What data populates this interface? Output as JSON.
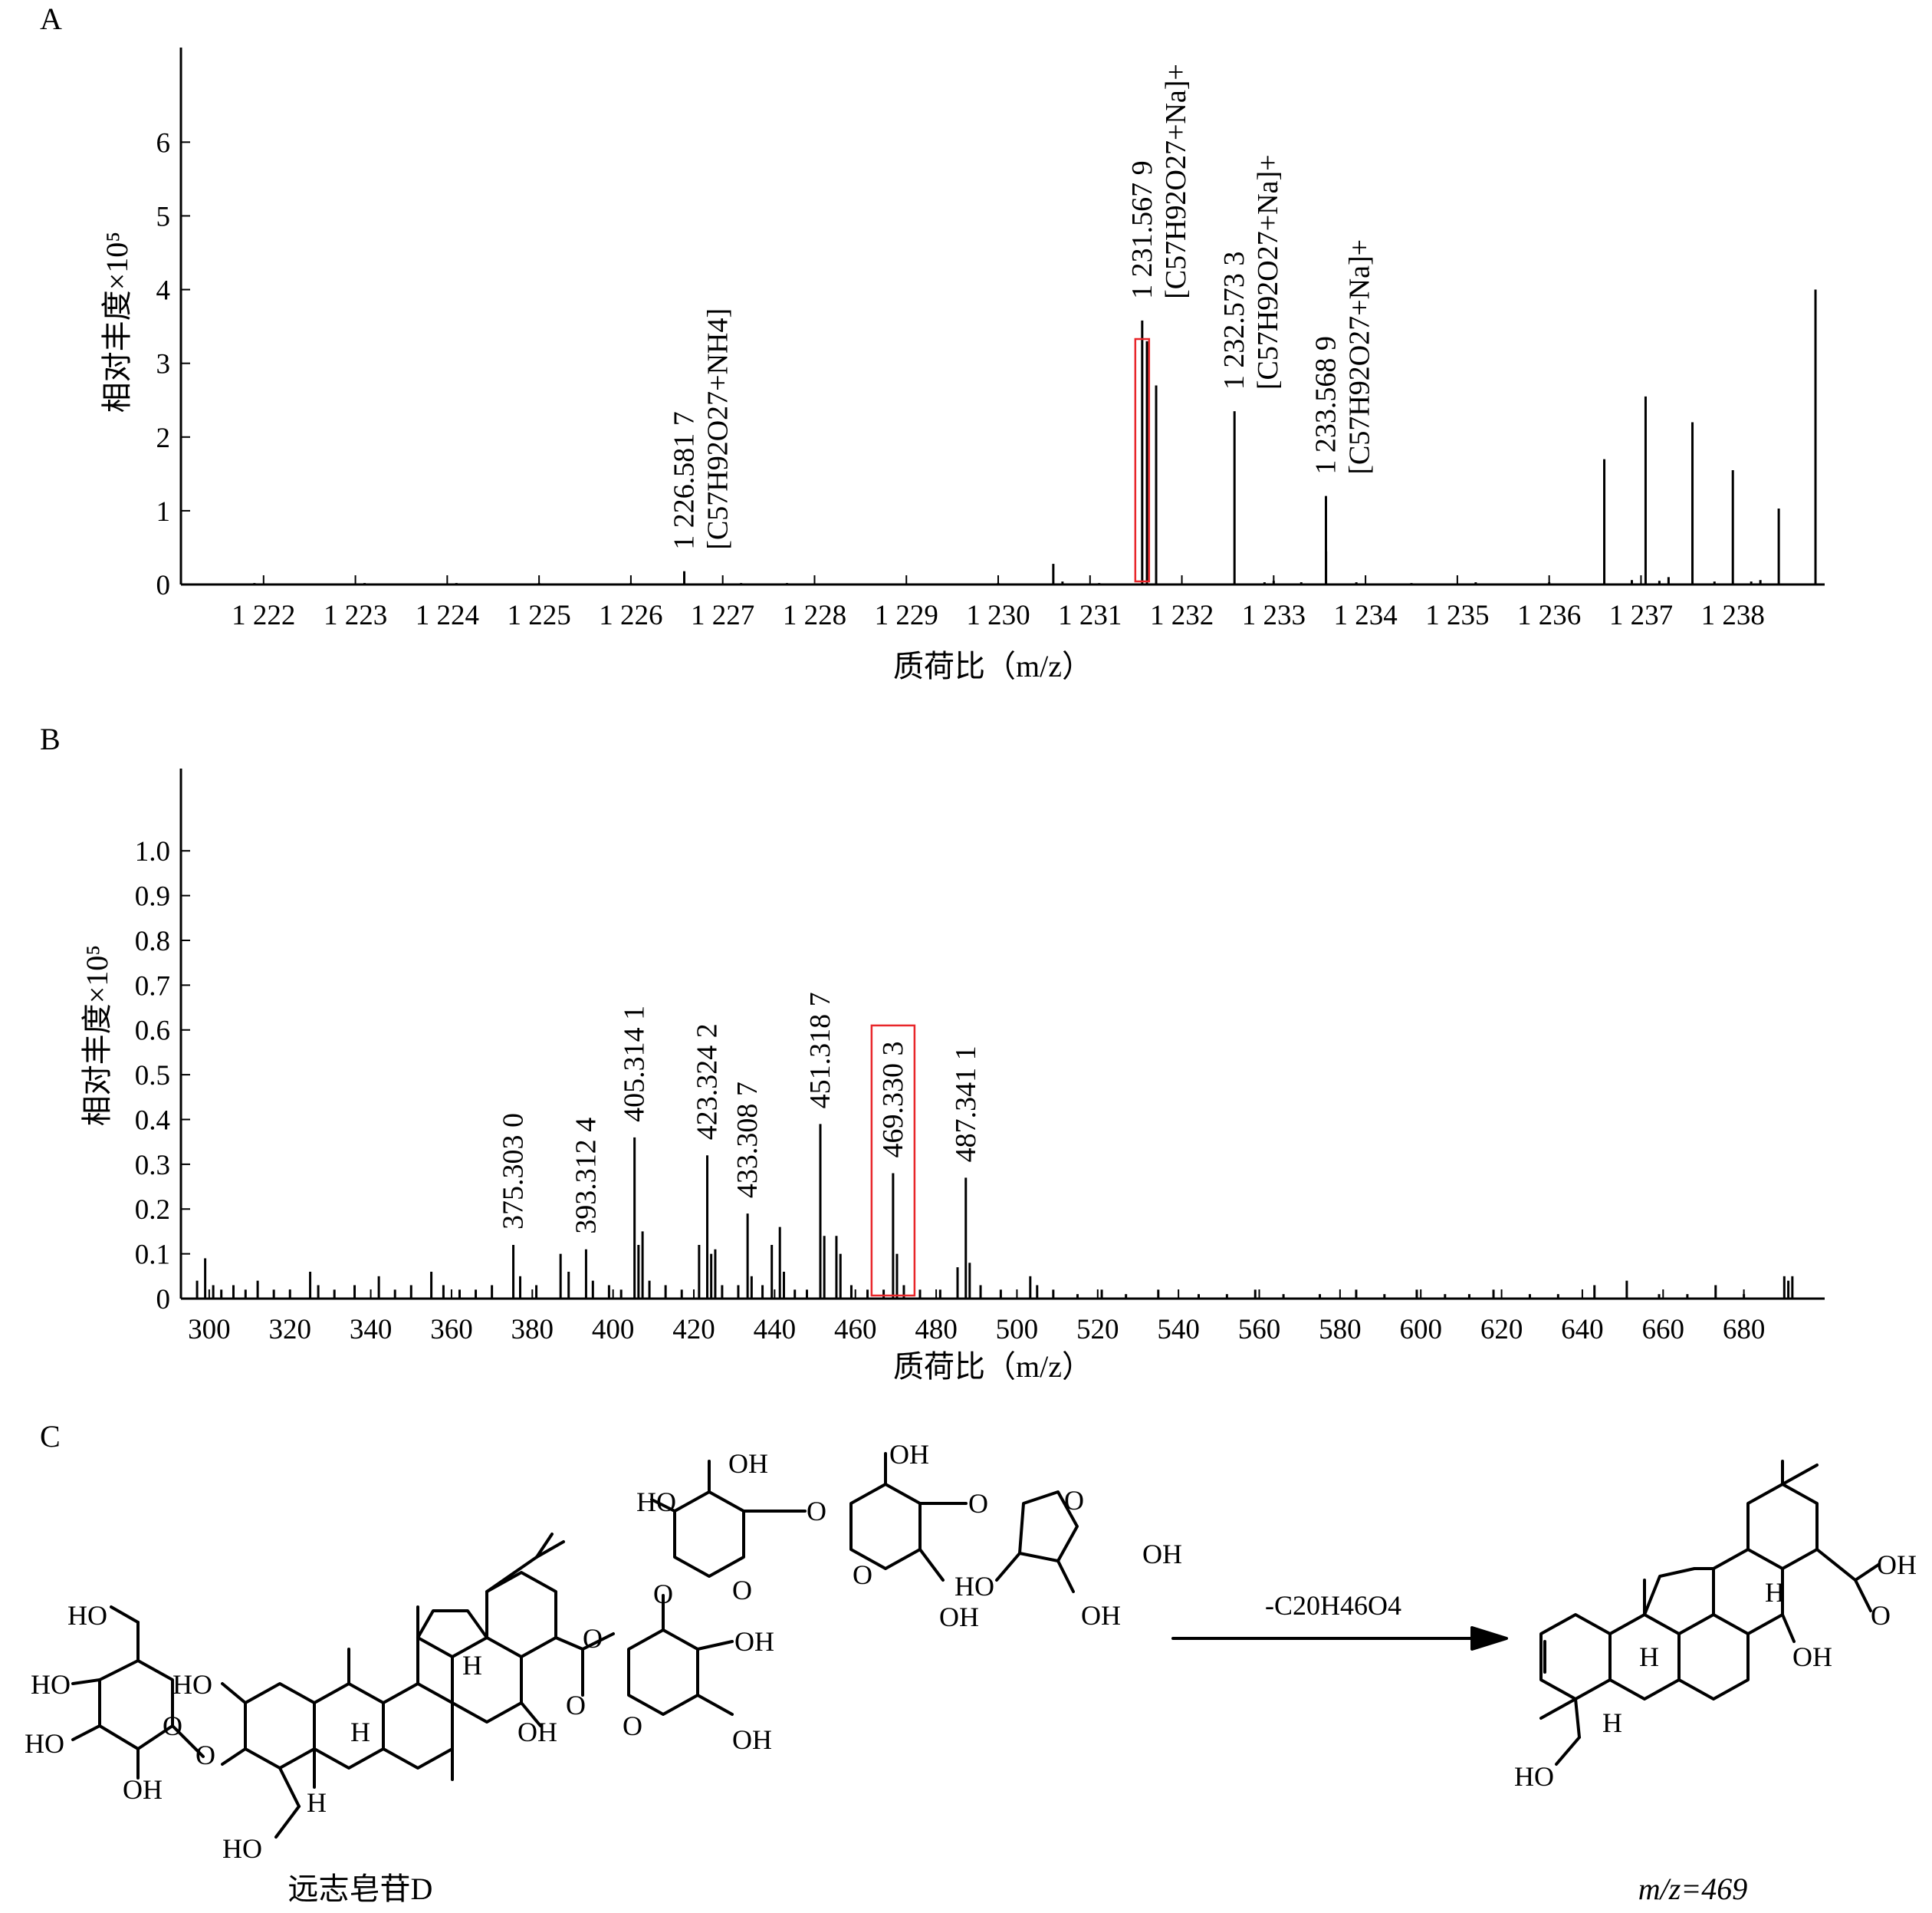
{
  "chart_data": [
    {
      "panel": "A",
      "type": "bar",
      "xlabel": "质荷比（m/z）",
      "ylabel": "相对丰度×10⁵",
      "xlim": [
        1221.1,
        1239.0
      ],
      "ylim": [
        0,
        7.2
      ],
      "x_ticks": [
        1222,
        1223,
        1224,
        1225,
        1226,
        1227,
        1228,
        1229,
        1230,
        1231,
        1232,
        1233,
        1234,
        1235,
        1236,
        1237,
        1238
      ],
      "x_tick_labels": [
        "1 222",
        "1 223",
        "1 224",
        "1 225",
        "1 226",
        "1 227",
        "1 228",
        "1 229",
        "1 230",
        "1 231",
        "1 232",
        "1 233",
        "1 234",
        "1 235",
        "1 236",
        "1 237",
        "1 238"
      ],
      "y_ticks": [
        0,
        1,
        2,
        3,
        4,
        5,
        6
      ],
      "y_tick_labels": [
        "0",
        "1",
        "2",
        "3",
        "4",
        "5",
        "6"
      ],
      "peaks": [
        {
          "x": 1221.9,
          "y": 0.02
        },
        {
          "x": 1222.4,
          "y": 0.01
        },
        {
          "x": 1223.1,
          "y": 0.02
        },
        {
          "x": 1224.1,
          "y": 0.02
        },
        {
          "x": 1225.0,
          "y": 0.02
        },
        {
          "x": 1225.5,
          "y": 0.01
        },
        {
          "x": 1226.0,
          "y": 0.02
        },
        {
          "x": 1226.581,
          "y": 0.18
        },
        {
          "x": 1227.2,
          "y": 0.02
        },
        {
          "x": 1227.7,
          "y": 0.02
        },
        {
          "x": 1228.6,
          "y": 0.01
        },
        {
          "x": 1230.0,
          "y": 0.02
        },
        {
          "x": 1230.6,
          "y": 0.28
        },
        {
          "x": 1230.7,
          "y": 0.04
        },
        {
          "x": 1231.1,
          "y": 0.02
        },
        {
          "x": 1231.568,
          "y": 3.58
        },
        {
          "x": 1231.62,
          "y": 3.3
        },
        {
          "x": 1231.72,
          "y": 2.7
        },
        {
          "x": 1232.573,
          "y": 2.35
        },
        {
          "x": 1232.9,
          "y": 0.03
        },
        {
          "x": 1233.0,
          "y": 0.05
        },
        {
          "x": 1233.3,
          "y": 0.03
        },
        {
          "x": 1233.569,
          "y": 1.2
        },
        {
          "x": 1233.57,
          "y": 0.45
        },
        {
          "x": 1233.9,
          "y": 0.03
        },
        {
          "x": 1234.5,
          "y": 0.02
        },
        {
          "x": 1235.2,
          "y": 0.03
        },
        {
          "x": 1236.0,
          "y": 0.03
        },
        {
          "x": 1236.6,
          "y": 1.7
        },
        {
          "x": 1236.9,
          "y": 0.06
        },
        {
          "x": 1237.05,
          "y": 2.55
        },
        {
          "x": 1237.2,
          "y": 0.05
        },
        {
          "x": 1237.3,
          "y": 0.1
        },
        {
          "x": 1237.56,
          "y": 2.2
        },
        {
          "x": 1237.8,
          "y": 0.04
        },
        {
          "x": 1238.0,
          "y": 1.55
        },
        {
          "x": 1238.2,
          "y": 0.04
        },
        {
          "x": 1238.3,
          "y": 0.06
        },
        {
          "x": 1238.5,
          "y": 1.03
        },
        {
          "x": 1238.9,
          "y": 4.0
        }
      ],
      "annotations": [
        {
          "x": 1226.581,
          "y": 0.18,
          "lines": [
            "1 226.581 7",
            "[C57H92O27+NH4]"
          ]
        },
        {
          "x": 1231.568,
          "y": 3.58,
          "lines": [
            "1 231.567 9",
            "[C57H92O27+Na]+"
          ]
        },
        {
          "x": 1232.573,
          "y": 2.35,
          "lines": [
            "1 232.573 3",
            "[C57H92O27+Na]+"
          ]
        },
        {
          "x": 1233.569,
          "y": 1.2,
          "lines": [
            "1 233.568 9",
            "[C57H92O27+Na]+"
          ]
        }
      ],
      "highlight": {
        "x": 1231.568,
        "label": "red box"
      }
    },
    {
      "panel": "B",
      "type": "bar",
      "xlabel": "质荷比（m/z）",
      "ylabel": "相对丰度×10⁵",
      "xlim": [
        293,
        700
      ],
      "ylim": [
        0,
        1.17
      ],
      "x_ticks": [
        300,
        320,
        340,
        360,
        380,
        400,
        420,
        440,
        460,
        480,
        500,
        520,
        540,
        560,
        580,
        600,
        620,
        640,
        660,
        680
      ],
      "x_tick_labels": [
        "300",
        "320",
        "340",
        "360",
        "380",
        "400",
        "420",
        "440",
        "460",
        "480",
        "500",
        "520",
        "540",
        "560",
        "580",
        "600",
        "620",
        "640",
        "660",
        "680"
      ],
      "y_ticks": [
        0,
        0.1,
        0.2,
        0.3,
        0.4,
        0.5,
        0.6,
        0.7,
        0.8,
        0.9,
        1.0
      ],
      "y_tick_labels": [
        "0",
        "0.1",
        "0.2",
        "0.3",
        "0.4",
        "0.5",
        "0.6",
        "0.7",
        "0.8",
        "0.9",
        "1.0"
      ],
      "peaks": [
        {
          "x": 297,
          "y": 0.04
        },
        {
          "x": 299,
          "y": 0.09
        },
        {
          "x": 301,
          "y": 0.03
        },
        {
          "x": 303,
          "y": 0.02
        },
        {
          "x": 306,
          "y": 0.03
        },
        {
          "x": 309,
          "y": 0.02
        },
        {
          "x": 312,
          "y": 0.04
        },
        {
          "x": 316,
          "y": 0.02
        },
        {
          "x": 320,
          "y": 0.02
        },
        {
          "x": 325,
          "y": 0.06
        },
        {
          "x": 327,
          "y": 0.03
        },
        {
          "x": 331,
          "y": 0.02
        },
        {
          "x": 336,
          "y": 0.03
        },
        {
          "x": 342,
          "y": 0.05
        },
        {
          "x": 346,
          "y": 0.02
        },
        {
          "x": 350,
          "y": 0.03
        },
        {
          "x": 355,
          "y": 0.06
        },
        {
          "x": 358,
          "y": 0.03
        },
        {
          "x": 362,
          "y": 0.02
        },
        {
          "x": 366,
          "y": 0.02
        },
        {
          "x": 370,
          "y": 0.03
        },
        {
          "x": 375.303,
          "y": 0.12
        },
        {
          "x": 377,
          "y": 0.05
        },
        {
          "x": 381,
          "y": 0.03
        },
        {
          "x": 387,
          "y": 0.1
        },
        {
          "x": 389,
          "y": 0.06
        },
        {
          "x": 393.312,
          "y": 0.11
        },
        {
          "x": 395,
          "y": 0.04
        },
        {
          "x": 399,
          "y": 0.03
        },
        {
          "x": 402,
          "y": 0.02
        },
        {
          "x": 405.314,
          "y": 0.36
        },
        {
          "x": 406.3,
          "y": 0.12
        },
        {
          "x": 407.3,
          "y": 0.15
        },
        {
          "x": 409,
          "y": 0.04
        },
        {
          "x": 413,
          "y": 0.03
        },
        {
          "x": 417,
          "y": 0.02
        },
        {
          "x": 421.3,
          "y": 0.12
        },
        {
          "x": 423.324,
          "y": 0.32
        },
        {
          "x": 424.3,
          "y": 0.1
        },
        {
          "x": 425.3,
          "y": 0.11
        },
        {
          "x": 427,
          "y": 0.03
        },
        {
          "x": 431,
          "y": 0.03
        },
        {
          "x": 433.309,
          "y": 0.19
        },
        {
          "x": 434.3,
          "y": 0.05
        },
        {
          "x": 437,
          "y": 0.03
        },
        {
          "x": 439.3,
          "y": 0.12
        },
        {
          "x": 441.3,
          "y": 0.16
        },
        {
          "x": 442.3,
          "y": 0.06
        },
        {
          "x": 445,
          "y": 0.02
        },
        {
          "x": 448,
          "y": 0.02
        },
        {
          "x": 451.319,
          "y": 0.39
        },
        {
          "x": 452.3,
          "y": 0.14
        },
        {
          "x": 455.3,
          "y": 0.14
        },
        {
          "x": 456.3,
          "y": 0.1
        },
        {
          "x": 459,
          "y": 0.03
        },
        {
          "x": 463,
          "y": 0.02
        },
        {
          "x": 467,
          "y": 0.02
        },
        {
          "x": 469.33,
          "y": 0.28
        },
        {
          "x": 470.3,
          "y": 0.1
        },
        {
          "x": 472,
          "y": 0.03
        },
        {
          "x": 476,
          "y": 0.02
        },
        {
          "x": 481,
          "y": 0.02
        },
        {
          "x": 485.3,
          "y": 0.07
        },
        {
          "x": 487.341,
          "y": 0.27
        },
        {
          "x": 488.3,
          "y": 0.08
        },
        {
          "x": 491,
          "y": 0.03
        },
        {
          "x": 496,
          "y": 0.02
        },
        {
          "x": 503.3,
          "y": 0.05
        },
        {
          "x": 505,
          "y": 0.03
        },
        {
          "x": 509,
          "y": 0.02
        },
        {
          "x": 515,
          "y": 0.01
        },
        {
          "x": 521,
          "y": 0.02
        },
        {
          "x": 527,
          "y": 0.01
        },
        {
          "x": 535,
          "y": 0.02
        },
        {
          "x": 545,
          "y": 0.01
        },
        {
          "x": 552,
          "y": 0.01
        },
        {
          "x": 559,
          "y": 0.02
        },
        {
          "x": 566,
          "y": 0.01
        },
        {
          "x": 575,
          "y": 0.01
        },
        {
          "x": 584,
          "y": 0.02
        },
        {
          "x": 591,
          "y": 0.01
        },
        {
          "x": 599,
          "y": 0.02
        },
        {
          "x": 606,
          "y": 0.01
        },
        {
          "x": 612,
          "y": 0.01
        },
        {
          "x": 618,
          "y": 0.02
        },
        {
          "x": 627,
          "y": 0.01
        },
        {
          "x": 634,
          "y": 0.01
        },
        {
          "x": 643,
          "y": 0.03
        },
        {
          "x": 651,
          "y": 0.04
        },
        {
          "x": 659,
          "y": 0.01
        },
        {
          "x": 666,
          "y": 0.01
        },
        {
          "x": 673,
          "y": 0.03
        },
        {
          "x": 680,
          "y": 0.01
        },
        {
          "x": 690,
          "y": 0.05
        },
        {
          "x": 691,
          "y": 0.04
        },
        {
          "x": 692,
          "y": 0.05
        }
      ],
      "annotations": [
        {
          "x": 375.303,
          "y": 0.12,
          "lines": [
            "375.303 0"
          ]
        },
        {
          "x": 393.312,
          "y": 0.11,
          "lines": [
            "393.312 4"
          ]
        },
        {
          "x": 405.314,
          "y": 0.36,
          "lines": [
            "405.314 1"
          ]
        },
        {
          "x": 423.324,
          "y": 0.32,
          "lines": [
            "423.324 2"
          ]
        },
        {
          "x": 433.309,
          "y": 0.19,
          "lines": [
            "433.308 7"
          ]
        },
        {
          "x": 451.319,
          "y": 0.39,
          "lines": [
            "451.318 7"
          ]
        },
        {
          "x": 469.33,
          "y": 0.28,
          "lines": [
            "469.330 3"
          ]
        },
        {
          "x": 487.341,
          "y": 0.27,
          "lines": [
            "487.341 1"
          ]
        }
      ],
      "highlight": {
        "x": 469.33,
        "label": "red box"
      }
    }
  ],
  "panels": {
    "A": {
      "letter": "A"
    },
    "B": {
      "letter": "B"
    },
    "C": {
      "letter": "C",
      "left_caption": "远志皂苷D",
      "right_caption": "m/z=469",
      "reaction_label": "-C20H46O4",
      "groups": {
        "oh": "OH",
        "ho": "HO",
        "o": "O",
        "h": "H"
      }
    }
  },
  "colors": {
    "axis": "#000000",
    "peak": "#000000",
    "highlight": "#e8262a"
  }
}
